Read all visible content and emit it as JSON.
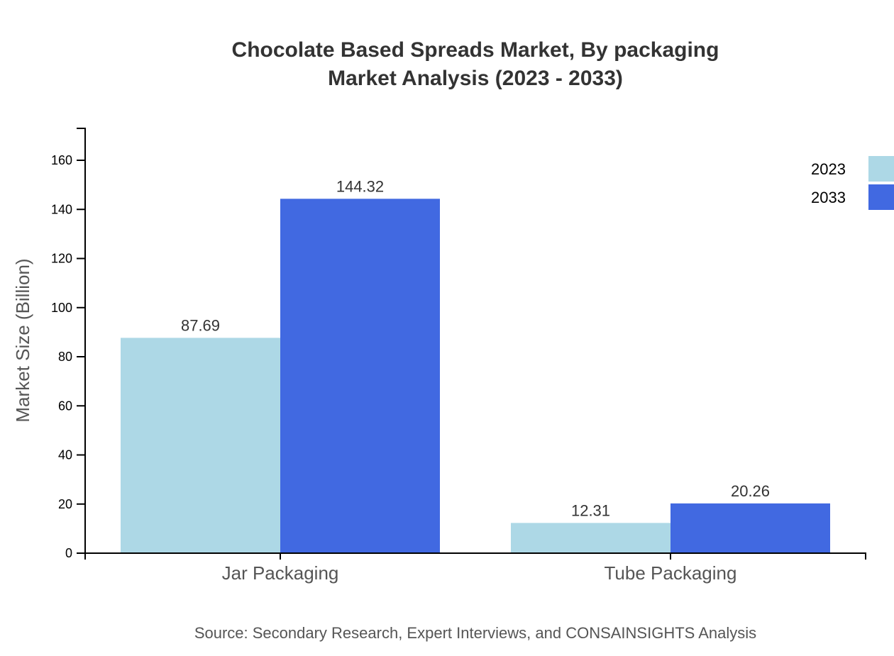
{
  "chart_data": {
    "type": "bar",
    "title": [
      "Chocolate Based Spreads Market, By packaging",
      "Market Analysis (2023 - 2033)"
    ],
    "xlabel": "",
    "ylabel": "Market Size (Billion)",
    "categories": [
      "Jar Packaging",
      "Tube Packaging"
    ],
    "series": [
      {
        "name": "2023",
        "values": [
          87.69,
          12.31
        ],
        "color": "#add8e6"
      },
      {
        "name": "2033",
        "values": [
          144.32,
          20.26
        ],
        "color": "#4169e1"
      }
    ],
    "ylim": [
      0,
      173
    ],
    "yticks": [
      0,
      20,
      40,
      60,
      80,
      100,
      120,
      140,
      160
    ],
    "grid": false,
    "legend": "top-right",
    "source": "Source: Secondary Research, Expert Interviews, and CONSAINSIGHTS Analysis"
  }
}
